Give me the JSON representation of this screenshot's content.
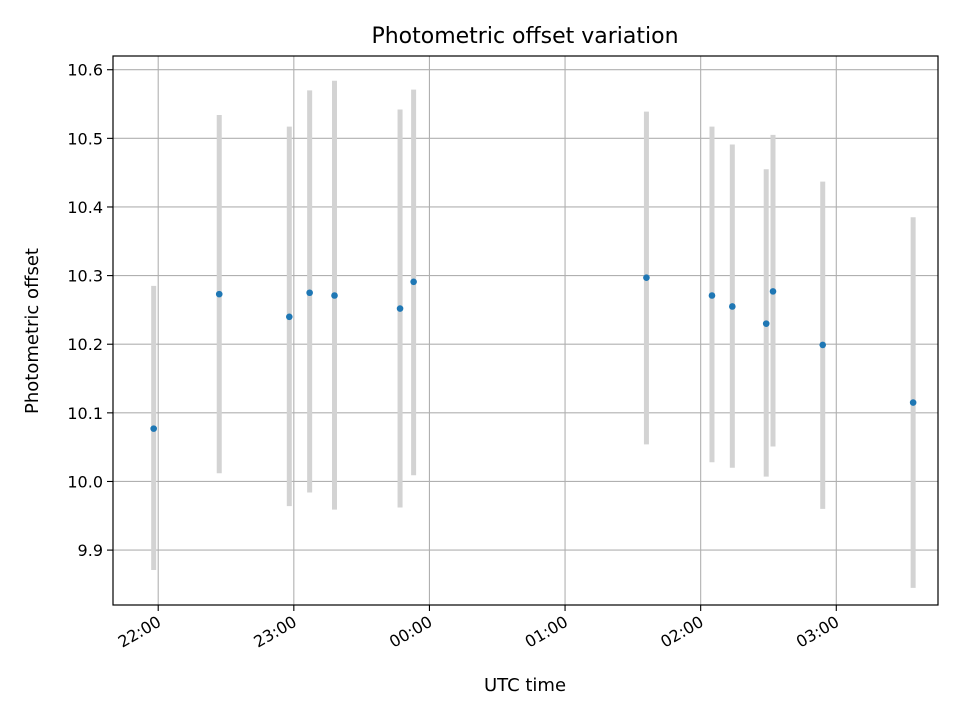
{
  "chart_data": {
    "type": "scatter",
    "title": "Photometric offset variation",
    "xlabel": "UTC time",
    "ylabel": "Photometric offset",
    "x_axis_type": "time",
    "x_start": "21:40",
    "x_end": "03:45",
    "x_ticks": [
      "22:00",
      "23:00",
      "00:00",
      "01:00",
      "02:00",
      "03:00"
    ],
    "ylim": [
      9.82,
      10.62
    ],
    "y_ticks": [
      "9.9",
      "10.0",
      "10.1",
      "10.2",
      "10.3",
      "10.4",
      "10.5",
      "10.6"
    ],
    "grid": true,
    "points": [
      {
        "x": "21:58",
        "y": 10.077,
        "ylow": 9.871,
        "yhigh": 10.285
      },
      {
        "x": "22:27",
        "y": 10.273,
        "ylow": 10.012,
        "yhigh": 10.534
      },
      {
        "x": "22:58",
        "y": 10.24,
        "ylow": 9.964,
        "yhigh": 10.517
      },
      {
        "x": "23:07",
        "y": 10.275,
        "ylow": 9.984,
        "yhigh": 10.57
      },
      {
        "x": "23:18",
        "y": 10.271,
        "ylow": 9.959,
        "yhigh": 10.584
      },
      {
        "x": "23:47",
        "y": 10.252,
        "ylow": 9.962,
        "yhigh": 10.542
      },
      {
        "x": "23:53",
        "y": 10.291,
        "ylow": 10.009,
        "yhigh": 10.571
      },
      {
        "x": "01:36",
        "y": 10.297,
        "ylow": 10.054,
        "yhigh": 10.539
      },
      {
        "x": "02:05",
        "y": 10.271,
        "ylow": 10.028,
        "yhigh": 10.517
      },
      {
        "x": "02:14",
        "y": 10.255,
        "ylow": 10.02,
        "yhigh": 10.491
      },
      {
        "x": "02:29",
        "y": 10.23,
        "ylow": 10.007,
        "yhigh": 10.455
      },
      {
        "x": "02:32",
        "y": 10.277,
        "ylow": 10.051,
        "yhigh": 10.505
      },
      {
        "x": "02:54",
        "y": 10.199,
        "ylow": 9.96,
        "yhigh": 10.437
      },
      {
        "x": "03:34",
        "y": 10.115,
        "ylow": 9.845,
        "yhigh": 10.385
      }
    ],
    "colors": {
      "points": "#1f77b4",
      "errorbars": "#d3d3d3",
      "grid": "#b0b0b0",
      "axes": "#000000"
    }
  }
}
